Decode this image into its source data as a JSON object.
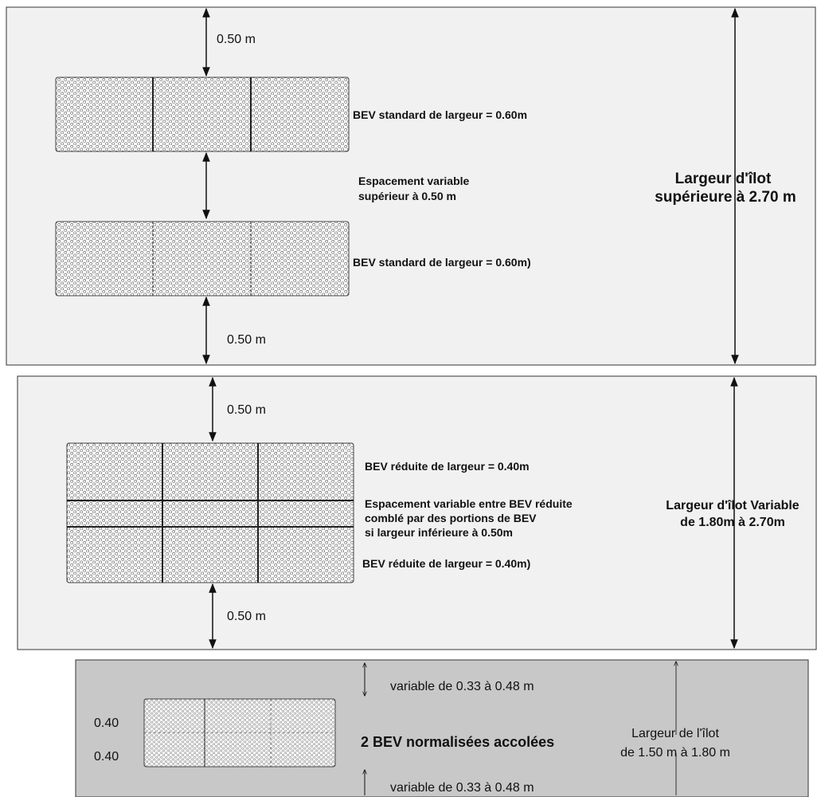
{
  "panel_top": {
    "gap_top": "0.50 m",
    "bev_label_1": "BEV standard de largeur = 0.60m",
    "spacing_line1": "Espacement variable",
    "spacing_line2": "supérieur  à 0.50 m",
    "bev_label_2": "BEV standard de largeur = 0.60m)",
    "gap_bottom": "0.50 m",
    "width_line1": "Largeur d'îlot",
    "width_line2": "supérieure  à 2.70 m"
  },
  "panel_middle": {
    "gap_top": "0.50 m",
    "bev_label_1": "BEV réduite de largeur = 0.40m",
    "spacing_line1": "Espacement variable entre BEV réduite",
    "spacing_line2": "comblé par des portions de BEV",
    "spacing_line3": "si largeur inférieure à 0.50m",
    "bev_label_2": "BEV réduite de largeur = 0.40m)",
    "gap_bottom": "0.50 m",
    "width_line1": "Largeur d'îlot Variable",
    "width_line2": "de 1.80m à 2.70m"
  },
  "panel_bottom": {
    "gap_top": "variable de 0.33 à 0.48 m",
    "left_value_1": "0.40",
    "left_value_2": "0.40",
    "center_label": "2 BEV normalisées accolées",
    "width_line1": "Largeur de l'îlot",
    "width_line2": "de 1.50 m à 1.80 m",
    "gap_bottom": "variable de 0.33 à 0.48 m"
  },
  "colors": {
    "panel_light": "#f1f1f1",
    "panel_dark": "#c8c8c8",
    "line": "#111111"
  }
}
